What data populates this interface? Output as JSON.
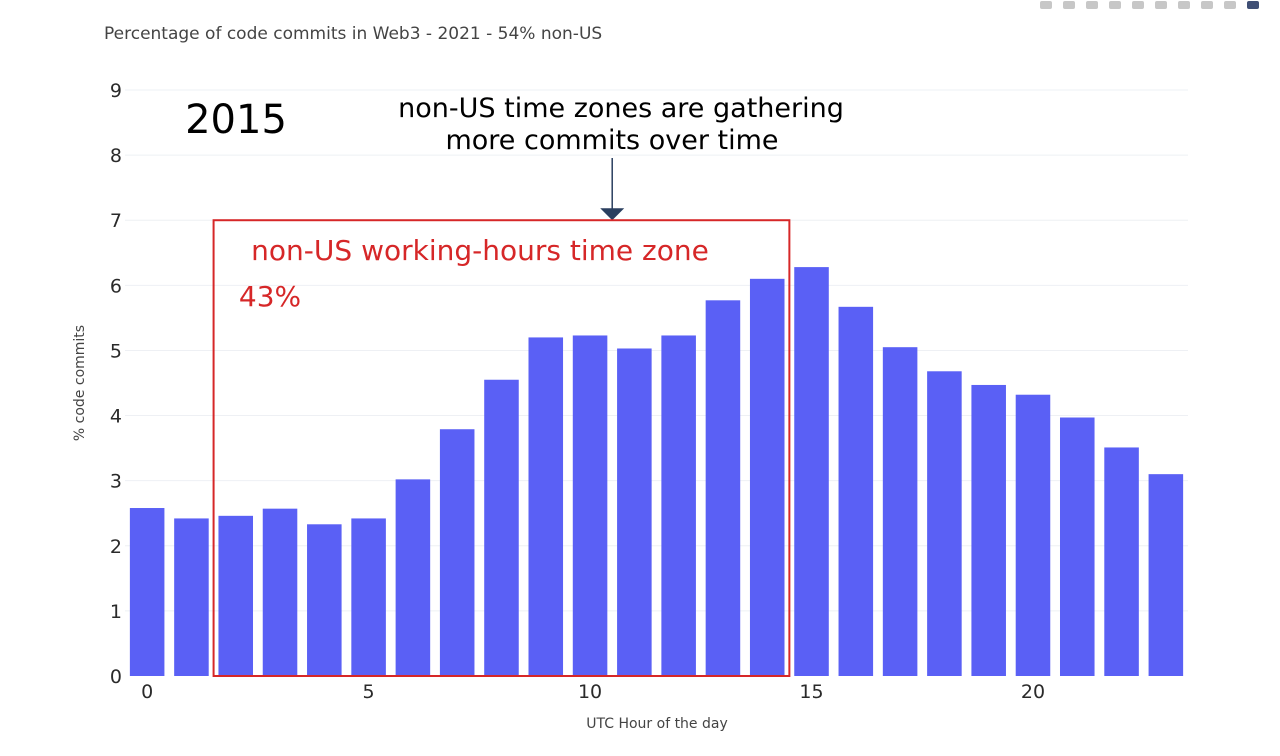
{
  "chart_data": {
    "type": "bar",
    "title": "Percentage of code commits in Web3 - 2021 - 54% non-US",
    "xlabel": "UTC Hour of the day",
    "ylabel": "% code commits",
    "x": [
      0,
      1,
      2,
      3,
      4,
      5,
      6,
      7,
      8,
      9,
      10,
      11,
      12,
      13,
      14,
      15,
      16,
      17,
      18,
      19,
      20,
      21,
      22,
      23
    ],
    "values": [
      2.58,
      2.42,
      2.46,
      2.57,
      2.33,
      2.42,
      3.02,
      3.79,
      4.55,
      5.2,
      5.23,
      5.03,
      5.23,
      5.77,
      6.1,
      6.28,
      5.67,
      5.05,
      4.68,
      4.47,
      4.32,
      3.97,
      3.51,
      3.1
    ],
    "x_ticks": [
      0,
      5,
      10,
      15,
      20
    ],
    "y_ticks": [
      0,
      1,
      2,
      3,
      4,
      5,
      6,
      7,
      8,
      9
    ],
    "ylim": [
      0,
      9
    ],
    "xlim": [
      -0.5,
      23.5
    ],
    "grid": true,
    "bar_color": "#5a60f5",
    "annotations": {
      "year_label": "2015",
      "arrow_text_line1": "non-US time zones are gathering",
      "arrow_text_line2": "more commits over time",
      "box_title": "non-US working-hours time zone",
      "box_value": "43%",
      "box_color": "#d62728",
      "box_x_range": [
        1.5,
        14.5
      ],
      "box_y_top": 7,
      "arrow_x": 10.5,
      "arrow_y_tip": 7
    }
  },
  "modebar": {
    "buttons": [
      "camera-icon",
      "zoom-icon",
      "pan-icon",
      "box-select-icon",
      "lasso-icon",
      "zoom-in-icon",
      "zoom-out-icon",
      "autoscale-icon",
      "reset-axes-icon",
      "plotly-logo-icon"
    ]
  }
}
